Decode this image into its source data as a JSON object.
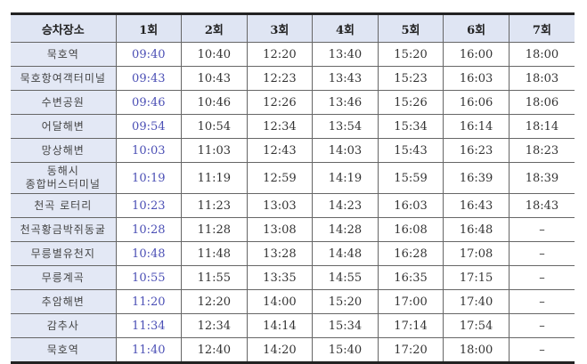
{
  "table": {
    "headers": [
      "승차장소",
      "1회",
      "2회",
      "3회",
      "4회",
      "5회",
      "6회",
      "7회"
    ],
    "rows": [
      {
        "stop": "묵호역",
        "times": [
          "09:40",
          "10:40",
          "12:20",
          "13:40",
          "15:20",
          "16:00",
          "18:00"
        ]
      },
      {
        "stop": "묵호항여객터미널",
        "times": [
          "09:43",
          "10:43",
          "12:23",
          "13:43",
          "15:23",
          "16:03",
          "18:03"
        ]
      },
      {
        "stop": "수변공원",
        "times": [
          "09:46",
          "10:46",
          "12:26",
          "13:46",
          "15:26",
          "16:06",
          "18:06"
        ]
      },
      {
        "stop": "어달해변",
        "times": [
          "09:54",
          "10:54",
          "12:34",
          "13:54",
          "15:34",
          "16:14",
          "18:14"
        ]
      },
      {
        "stop": "망상해변",
        "times": [
          "10:03",
          "11:03",
          "12:43",
          "14:03",
          "15:43",
          "16:23",
          "18:23"
        ]
      },
      {
        "stop": "동해시 종합버스터미널",
        "stop_line1": "동해시",
        "stop_line2": "종합버스터미널",
        "times": [
          "10:19",
          "11:19",
          "12:59",
          "14:19",
          "15:59",
          "16:39",
          "18:39"
        ]
      },
      {
        "stop": "천곡 로터리",
        "times": [
          "10:23",
          "11:23",
          "13:03",
          "14:23",
          "16:03",
          "16:43",
          "18:43"
        ]
      },
      {
        "stop": "천곡황금박쥐동굴",
        "times": [
          "10:28",
          "11:28",
          "13:08",
          "14:28",
          "16:08",
          "16:48",
          "–"
        ]
      },
      {
        "stop": "무릉별유천지",
        "times": [
          "10:48",
          "11:48",
          "13:28",
          "14:48",
          "16:28",
          "17:08",
          "–"
        ]
      },
      {
        "stop": "무릉계곡",
        "times": [
          "10:55",
          "11:55",
          "13:35",
          "14:55",
          "16:35",
          "17:15",
          "–"
        ]
      },
      {
        "stop": "추암해변",
        "times": [
          "11:20",
          "12:20",
          "14:00",
          "15:20",
          "17:00",
          "17:40",
          "–"
        ]
      },
      {
        "stop": "감추사",
        "times": [
          "11:34",
          "12:34",
          "14:14",
          "15:34",
          "17:14",
          "17:54",
          "–"
        ]
      },
      {
        "stop": "묵호역",
        "times": [
          "11:40",
          "12:40",
          "14:20",
          "15:40",
          "17:20",
          "18:00",
          "–"
        ]
      }
    ]
  },
  "colors": {
    "header_bg": "#dfe5f3",
    "first_run_text": "#4b4fb5"
  }
}
